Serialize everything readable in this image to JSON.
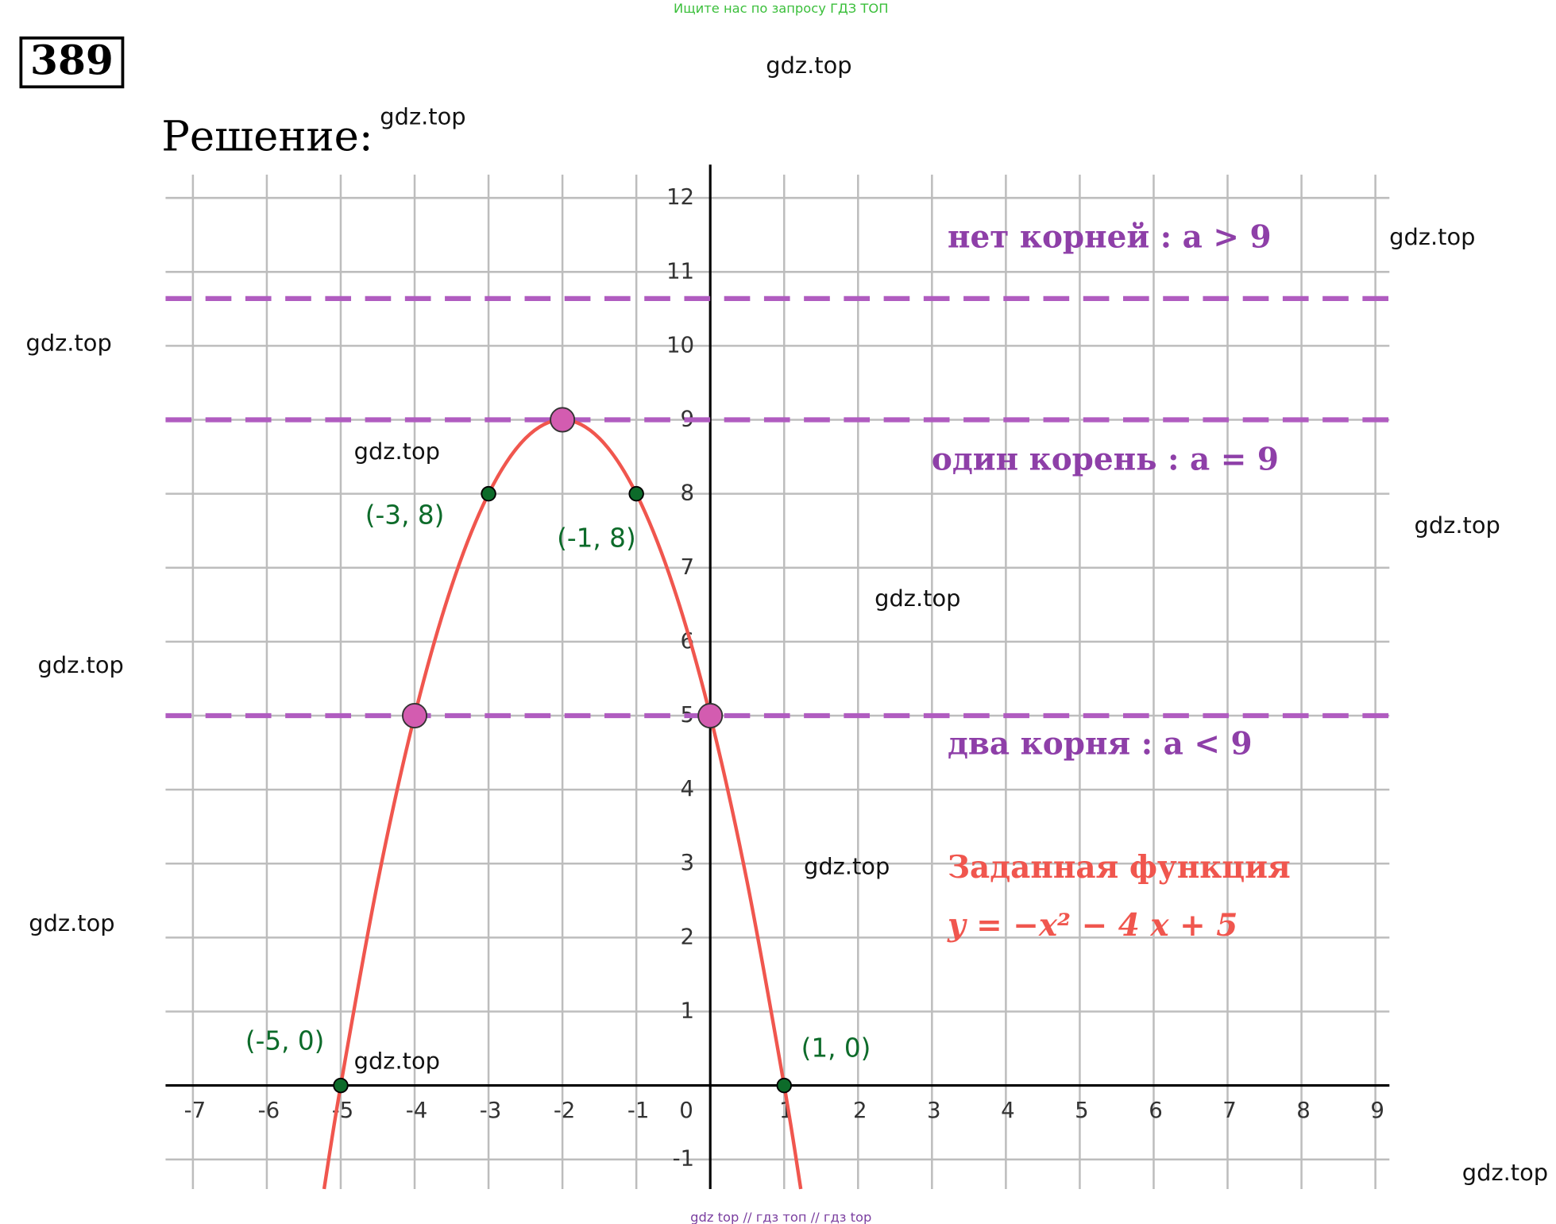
{
  "header": {
    "top_note": "Ищите нас по запросу ГДЗ ТОП",
    "number": "389",
    "solution": "Решение:",
    "footer": "gdz top  //  гдз топ  //  гдз top"
  },
  "watermarks": [
    "gdz.top",
    "gdz.top",
    "gdz.top",
    "gdz.top",
    "gdz.top",
    "gdz.top",
    "gdz.top",
    "gdz.top",
    "gdz.top",
    "gdz.top",
    "gdz.top",
    "gdz.top"
  ],
  "chart_data": {
    "type": "line",
    "x": [
      -5.225,
      -5,
      -4.5,
      -4,
      -3.5,
      -3,
      -2.5,
      -2,
      -1.5,
      -1,
      -0.5,
      0,
      0.5,
      1,
      1.225
    ],
    "series": [
      {
        "name": "Заданная функция",
        "color": "#f0564e",
        "values": [
          -1.4,
          0,
          2.75,
          5,
          6.75,
          8,
          8.75,
          9,
          8.75,
          8,
          6.75,
          5,
          2.75,
          0,
          -1.4
        ]
      }
    ],
    "formula": "y = −x² − 4 x + 5",
    "xlim": [
      -7.37,
      9.19
    ],
    "ylim": [
      -1.4,
      12.45
    ],
    "xticks": [
      -7,
      -6,
      -5,
      -4,
      -3,
      -2,
      -1,
      0,
      1,
      2,
      3,
      4,
      5,
      6,
      7,
      8,
      9
    ],
    "yticks": [
      -1,
      1,
      2,
      3,
      4,
      5,
      6,
      7,
      8,
      9,
      10,
      11,
      12
    ],
    "grid": true,
    "hlines": [
      10.64,
      9,
      5
    ],
    "hline_color": "#b05cc0",
    "annotations": [
      "нет корней :  a > 9",
      "один корень :  a = 9",
      "два корня :  a < 9"
    ],
    "annotation_color": "#8e3fa8",
    "points": [
      {
        "x": -3,
        "y": 8,
        "label": "(-3, 8)"
      },
      {
        "x": -1,
        "y": 8,
        "label": "(-1, 8)"
      },
      {
        "x": -5,
        "y": 0,
        "label": "(-5, 0)"
      },
      {
        "x": 1,
        "y": 0,
        "label": "(1, 0)"
      }
    ],
    "point_color": "#0d6b2a",
    "key_points": [
      {
        "x": -2,
        "y": 9
      },
      {
        "x": -4,
        "y": 5
      },
      {
        "x": 0,
        "y": 5
      }
    ],
    "key_point_color": "#d35cb0"
  }
}
